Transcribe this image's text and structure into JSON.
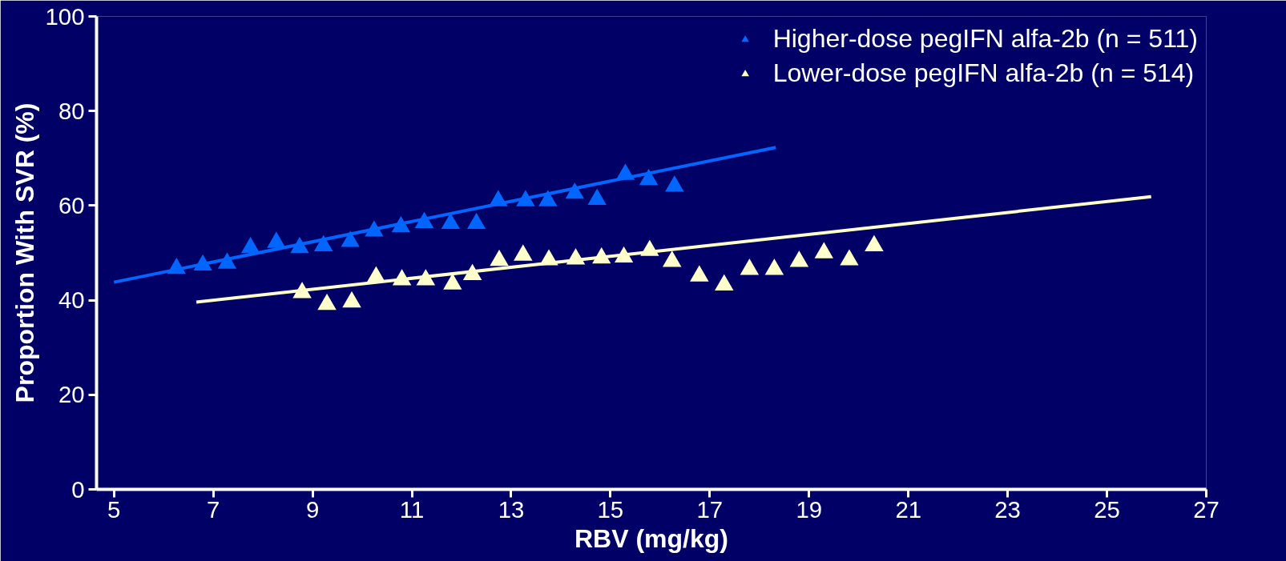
{
  "chart_data": {
    "type": "scatter",
    "xlabel": "RBV (mg/kg)",
    "ylabel": "Proportion With SVR (%)",
    "xlim": [
      4.65,
      27
    ],
    "xticks": [
      5,
      7,
      9,
      11,
      13,
      15,
      17,
      19,
      21,
      23,
      25,
      27
    ],
    "ylim": [
      0,
      100
    ],
    "yticks": [
      0,
      20,
      40,
      60,
      80,
      100
    ],
    "grid": false,
    "legend": "top right",
    "marker": "triangle",
    "series": [
      {
        "name": "Higher-dose pegIFN alfa-2b (n = 511)",
        "color": "#0066ff",
        "x": [
          6.26,
          6.79,
          7.28,
          7.75,
          8.27,
          8.74,
          9.22,
          9.76,
          10.24,
          10.78,
          11.25,
          11.78,
          12.3,
          12.74,
          13.29,
          13.74,
          14.28,
          14.73,
          15.3,
          15.77,
          16.29
        ],
        "values": [
          46.7,
          47.4,
          47.8,
          51.1,
          52.2,
          51.1,
          51.5,
          52.4,
          54.6,
          55.5,
          56.4,
          56.2,
          56.2,
          61,
          61,
          61,
          62.6,
          61.3,
          66.6,
          65.5,
          64.1
        ]
      },
      {
        "name": "Lower-dose pegIFN alfa-2b (n = 514)",
        "color": "#ffffcc",
        "x": [
          8.79,
          9.29,
          9.79,
          10.28,
          10.8,
          11.28,
          11.82,
          12.22,
          12.76,
          13.24,
          13.76,
          14.3,
          14.82,
          15.27,
          15.79,
          16.24,
          16.79,
          17.29,
          17.8,
          18.3,
          18.8,
          19.3,
          19.81,
          20.31
        ],
        "values": [
          41.6,
          39.1,
          39.6,
          44.9,
          44.3,
          44.3,
          43.4,
          45.4,
          48.4,
          49.5,
          48.5,
          48.7,
          48.9,
          49.1,
          50.5,
          48.2,
          45.1,
          43.2,
          46.5,
          46.5,
          48.2,
          50,
          48.5,
          51.5
        ]
      },
      {
        "type": "line",
        "marker": "none",
        "color": "#0066ff",
        "x": [
          5,
          18.33
        ],
        "values": [
          43.8,
          72.3
        ]
      },
      {
        "type": "line",
        "marker": "none",
        "color": "#ffffcc",
        "x": [
          6.66,
          25.89
        ],
        "values": [
          39.6,
          61.9
        ]
      }
    ]
  }
}
